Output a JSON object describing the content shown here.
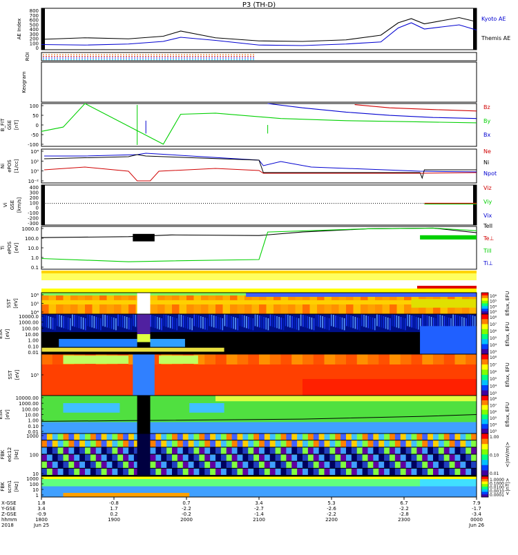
{
  "title": "P3 (TH-D)",
  "colors": {
    "black": "#000000",
    "red": "#d00000",
    "green": "#00d000",
    "blue": "#0000d0",
    "orange": "#e07000",
    "cyan": "#00c8ff"
  },
  "panels": {
    "ae": {
      "ylabel": "AE Index",
      "ticks": [
        "800",
        "700",
        "600",
        "500",
        "400",
        "300",
        "200",
        "100",
        "0"
      ],
      "legend": [
        "Kyoto AE",
        "Themis AE"
      ]
    },
    "roi": {
      "ylabel": "ROI"
    },
    "keogram": {
      "ylabel": "Keogram"
    },
    "bfit": {
      "ylabel": [
        "B_FIT",
        "GSE",
        "[nT]"
      ],
      "ticks": [
        "100",
        "50",
        "0",
        "-50",
        "-100"
      ],
      "legend": [
        "Bz",
        "By",
        "Bx"
      ]
    },
    "density": {
      "ylabel": [
        "Ni",
        "ePOS",
        "[1/cc]"
      ],
      "ticks": [
        "10⁴",
        "10²",
        "10⁰",
        "10⁻²"
      ],
      "legend": [
        "Ne",
        "Ni",
        "Npot"
      ]
    },
    "velocity": {
      "ylabel": [
        "Vi",
        "GSE",
        "[km/s]"
      ],
      "ticks": [
        "400",
        "300",
        "200",
        "100",
        "0",
        "-100",
        "-200",
        "-300"
      ],
      "legend": [
        "Viz",
        "Viy",
        "Vix"
      ]
    },
    "temp": {
      "ylabel": [
        "Ti",
        "ePOS",
        "[eV]"
      ],
      "ticks": [
        "1000.0",
        "100.0",
        "10.0",
        "1.0",
        "0.1"
      ],
      "legend": [
        "TeII",
        "Te⊥",
        "TiII",
        "Ti⊥"
      ]
    },
    "spec1": {
      "ylabel": [
        "SST",
        "[eV]"
      ],
      "ticks": [
        "10⁶",
        "10⁵",
        "10⁴"
      ]
    },
    "spec2": {
      "ylabel": [
        "ESA",
        "[eV]"
      ],
      "ticks": [
        "10000.0",
        "1000.00",
        "100.00",
        "10.00",
        "1.00",
        "0.10",
        "0.01"
      ]
    },
    "spec3": {
      "ylabel": [
        "SST",
        "[eV]"
      ],
      "ticks": [
        "10⁵"
      ]
    },
    "spec4": {
      "ylabel": [
        "ESA",
        "[eV]"
      ],
      "ticks": [
        "10000.00",
        "1000.00",
        "100.00",
        "10.00",
        "1.00",
        "0.10",
        "0.01"
      ]
    },
    "fbk1": {
      "ylabel": [
        "FBK",
        "edc12",
        "[Hz]"
      ],
      "ticks": [
        "1000",
        "100",
        "10"
      ]
    },
    "fbk2": {
      "ylabel": [
        "FBK",
        "scm1",
        "[Hz]"
      ],
      "ticks": [
        "1000",
        "100",
        "10",
        "1"
      ]
    }
  },
  "colorbars": {
    "ion": {
      "label": "Eflux, EFU",
      "ticks": [
        "10⁶",
        "10⁵",
        "10⁴",
        "10³"
      ]
    },
    "electron": {
      "label": "Eflux, EFU",
      "ticks": [
        "10⁸",
        "10⁷",
        "10⁶",
        "10⁵",
        "10⁴",
        "10³"
      ]
    },
    "sst_e": {
      "label": "Eflux, EFU",
      "ticks": [
        "10⁸",
        "10⁷",
        "10⁶",
        "10⁵",
        "10⁴",
        "10³"
      ]
    },
    "esa_e": {
      "label": "Eflux, EFU",
      "ticks": [
        "10⁸",
        "10⁷",
        "10⁶",
        "10⁵",
        "10⁴",
        "10³"
      ]
    },
    "fbk_e": {
      "label": "<|mV/m|>",
      "ticks": [
        "1.00",
        "0.10",
        "0.01"
      ]
    },
    "fbk_b": {
      "label": "<|nT|>",
      "ticks": [
        "1.0000",
        "0.1000",
        "0.0100",
        "0.0010",
        "0.0001"
      ]
    }
  },
  "footer": {
    "row_labels": [
      "X-GSE",
      "Y-GSE",
      "Z-GSE",
      "hhmm",
      "2018"
    ],
    "columns": [
      [
        "1.8",
        "3.4",
        "-0.9",
        "1800",
        "Jun 25"
      ],
      [
        "-0.8",
        "1.7",
        "0.2",
        "1900",
        ""
      ],
      [
        "0.7",
        "-2.2",
        "-0.2",
        "2000",
        ""
      ],
      [
        "3.4",
        "-2.7",
        "-1.4",
        "2100",
        ""
      ],
      [
        "5.3",
        "-2.6",
        "-2.2",
        "2200",
        ""
      ],
      [
        "6.7",
        "-2.2",
        "-2.8",
        "2300",
        ""
      ],
      [
        "7.9",
        "-1.7",
        "-3.4",
        "0000",
        "Jun 26"
      ]
    ]
  },
  "chart_data": {
    "type": "line",
    "title": "P3 (TH-D)",
    "x": [
      "1800",
      "1900",
      "2000",
      "2100",
      "2200",
      "2300",
      "0000"
    ],
    "xlabel": "hhmm",
    "ae_index": {
      "ylim": [
        0,
        800
      ],
      "series": [
        {
          "name": "Kyoto AE",
          "times": [
            0,
            0.1,
            0.2,
            0.28,
            0.32,
            0.4,
            0.5,
            0.6,
            0.7,
            0.78,
            0.82,
            0.85,
            0.88,
            0.92,
            0.96,
            1
          ],
          "values": [
            100,
            90,
            110,
            160,
            240,
            180,
            90,
            80,
            110,
            150,
            420,
            520,
            400,
            440,
            480,
            380
          ]
        },
        {
          "name": "Themis AE",
          "times": [
            0,
            0.1,
            0.2,
            0.28,
            0.32,
            0.4,
            0.5,
            0.6,
            0.7,
            0.78,
            0.82,
            0.85,
            0.88,
            0.92,
            0.96,
            1
          ],
          "values": [
            200,
            230,
            210,
            260,
            360,
            230,
            170,
            160,
            190,
            280,
            520,
            600,
            500,
            560,
            620,
            540
          ]
        }
      ]
    },
    "b_field": {
      "ylim": [
        -100,
        100
      ],
      "series": [
        {
          "name": "Bz",
          "times": [
            0.72,
            0.8,
            0.9,
            1
          ],
          "values": [
            95,
            80,
            72,
            65
          ]
        },
        {
          "name": "By",
          "times": [
            0,
            0.05,
            0.1,
            0.28,
            0.32,
            0.4,
            0.55,
            0.7,
            0.85,
            1
          ],
          "values": [
            -30,
            -10,
            100,
            -90,
            50,
            55,
            30,
            20,
            15,
            10
          ]
        },
        {
          "name": "Bx",
          "times": [
            0.52,
            0.6,
            0.7,
            0.8,
            0.9,
            1
          ],
          "values": [
            100,
            80,
            60,
            45,
            35,
            30
          ]
        }
      ]
    },
    "ion_temperature": {
      "ylim": [
        0.1,
        1000
      ],
      "series": [
        {
          "name": "TeII",
          "times": [
            0,
            0.2,
            0.3,
            0.5,
            0.6,
            0.75,
            0.9,
            1
          ],
          "values": [
            90,
            110,
            160,
            140,
            300,
            600,
            700,
            260
          ]
        },
        {
          "name": "TiII",
          "times": [
            0,
            0.2,
            0.3,
            0.5,
            0.52,
            0.75,
            0.9,
            1
          ],
          "values": [
            1,
            0.5,
            0.6,
            0.8,
            300,
            600,
            700,
            400
          ]
        }
      ]
    }
  }
}
